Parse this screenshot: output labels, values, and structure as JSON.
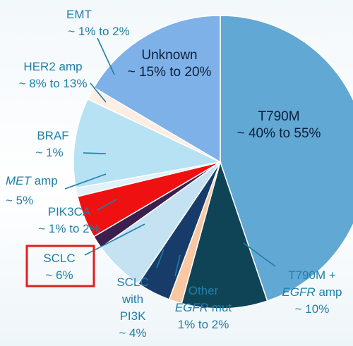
{
  "colors": {
    "label_text": "#1f7fa6",
    "highlight_box": "#e02020",
    "leader_line": "#1f7fa6"
  },
  "chart_data": {
    "type": "pie",
    "title": "",
    "slices": [
      {
        "key": "t790m",
        "label": "T790M",
        "range": "~ 40% to 55%",
        "value": 47.5,
        "color": "#62a8d4"
      },
      {
        "key": "t790m_egfr",
        "label": "T790M + EGFR amp",
        "range": "~ 10%",
        "value": 10,
        "color": "#0f4456"
      },
      {
        "key": "other_egfr",
        "label": "Other EGFR mut",
        "range": "1% to 2%",
        "value": 1.5,
        "color": "#f9c7a2"
      },
      {
        "key": "sclc_pi3k",
        "label": "SCLC with PI3K",
        "range": "~ 4%",
        "value": 4,
        "color": "#173c6a"
      },
      {
        "key": "sclc",
        "label": "SCLC",
        "range": "~ 6%",
        "value": 6,
        "color": "#c5e2f3"
      },
      {
        "key": "pik3ca",
        "label": "PIK3CA",
        "range": "~ 1% to 2%",
        "value": 1.5,
        "color": "#3b1f4f"
      },
      {
        "key": "met",
        "label": "MET amp",
        "range": "~ 5%",
        "value": 5,
        "color": "#ef1111"
      },
      {
        "key": "braf",
        "label": "BRAF",
        "range": "~ 1%",
        "value": 1,
        "color": "#e0f2fb"
      },
      {
        "key": "her2",
        "label": "HER2 amp",
        "range": "~ 8% to 13%",
        "value": 10.5,
        "color": "#b6e2f4"
      },
      {
        "key": "emt",
        "label": "EMT",
        "range": "~ 1% to 2%",
        "value": 1.5,
        "color": "#fdeee4"
      },
      {
        "key": "unknown",
        "label": "Unknown",
        "range": "~ 15% to 20%",
        "value": 17.5,
        "color": "#7eb1e8"
      }
    ]
  },
  "labels": {
    "t790m": {
      "line1": "T790M",
      "line2": "~ 40% to 55%"
    },
    "unknown": {
      "line1": "Unknown",
      "line2": "~ 15% to 20%"
    },
    "emt": {
      "line1": "EMT",
      "line2": "~ 1% to 2%"
    },
    "her2": {
      "line1": "HER2 amp",
      "line2": "~ 8% to 13%"
    },
    "braf": {
      "line1": "BRAF",
      "line2": "~ 1%"
    },
    "met": {
      "line1_italic": "MET",
      "line1_rest": " amp",
      "line2": "~ 5%"
    },
    "pik3ca": {
      "line1": "PIK3CA",
      "line2": "~ 1% to 2%"
    },
    "sclc": {
      "line1": "SCLC",
      "line2": "~ 6%"
    },
    "sclc_pi3k": {
      "line1": "SCLC",
      "line2": "with",
      "line3": "PI3K",
      "line4": "~ 4%"
    },
    "other_egfr": {
      "line1": "Other",
      "line2_italic": "EGFR",
      "line2_rest": " mut",
      "line3": "1% to 2%"
    },
    "t790m_egfr": {
      "line1": "T790M +",
      "line2_italic": "EGFR",
      "line2_rest": " amp",
      "line3": "~ 10%"
    }
  }
}
